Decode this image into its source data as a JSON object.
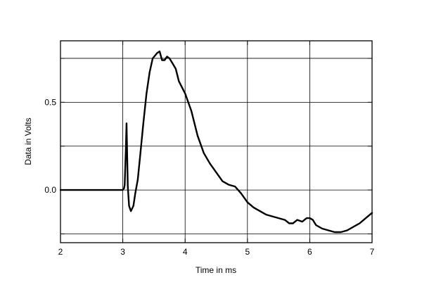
{
  "chart_data": {
    "type": "line",
    "title": "",
    "xlabel": "Time in ms",
    "ylabel": "Data in Volts",
    "xlim": [
      2,
      7
    ],
    "ylim": [
      -0.3,
      0.85
    ],
    "x_ticks": [
      2,
      3,
      4,
      5,
      6,
      7
    ],
    "x_tick_labels": [
      "2",
      "3",
      "4",
      "5",
      "6",
      "7"
    ],
    "y_ticks": [
      -0.25,
      0,
      0.25,
      0.5,
      0.75
    ],
    "y_tick_labels": [
      "",
      "0.0",
      "",
      "0.5",
      ""
    ],
    "grid": true,
    "series": [
      {
        "color": "#000000",
        "x": [
          2.0,
          2.5,
          2.9,
          3.0,
          3.02,
          3.03,
          3.05,
          3.06,
          3.07,
          3.08,
          3.1,
          3.13,
          3.17,
          3.2,
          3.24,
          3.28,
          3.33,
          3.38,
          3.43,
          3.48,
          3.55,
          3.59,
          3.63,
          3.67,
          3.71,
          3.75,
          3.8,
          3.85,
          3.9,
          4.0,
          4.1,
          4.2,
          4.3,
          4.4,
          4.5,
          4.6,
          4.7,
          4.8,
          4.9,
          5.0,
          5.1,
          5.2,
          5.3,
          5.4,
          5.5,
          5.6,
          5.67,
          5.73,
          5.8,
          5.88,
          5.95,
          6.0,
          6.05,
          6.1,
          6.2,
          6.3,
          6.4,
          6.5,
          6.6,
          6.7,
          6.8,
          6.9,
          7.0
        ],
        "values": [
          0.0,
          0.0,
          0.0,
          0.0,
          0.01,
          0.03,
          0.24,
          0.38,
          0.2,
          0.02,
          -0.09,
          -0.12,
          -0.09,
          -0.02,
          0.06,
          0.2,
          0.38,
          0.55,
          0.67,
          0.75,
          0.78,
          0.79,
          0.74,
          0.74,
          0.76,
          0.75,
          0.72,
          0.69,
          0.62,
          0.55,
          0.45,
          0.31,
          0.21,
          0.15,
          0.1,
          0.05,
          0.03,
          0.02,
          -0.02,
          -0.07,
          -0.1,
          -0.12,
          -0.14,
          -0.15,
          -0.16,
          -0.17,
          -0.19,
          -0.19,
          -0.17,
          -0.18,
          -0.16,
          -0.16,
          -0.17,
          -0.2,
          -0.22,
          -0.23,
          -0.24,
          -0.24,
          -0.23,
          -0.21,
          -0.19,
          -0.16,
          -0.13
        ]
      }
    ]
  }
}
